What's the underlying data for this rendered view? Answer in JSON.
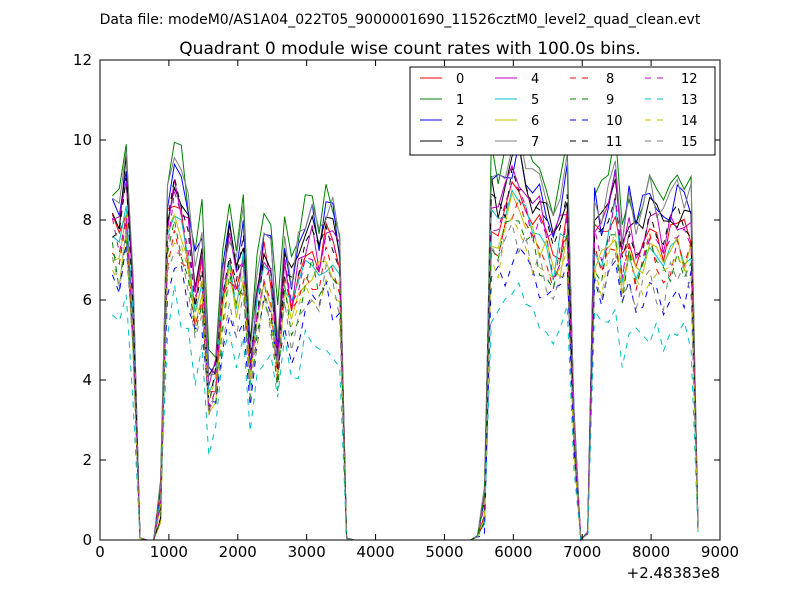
{
  "chart_data": {
    "type": "line",
    "suptitle": "Data file: modeM0/AS1A04_022T05_9000001690_11526cztM0_level2_quad_clean.evt",
    "title": "Quadrant 0 module wise count rates with 100.0s bins.",
    "xlabel": "",
    "ylabel": "",
    "x_offset_label": "+2.48383e8",
    "xlim": [
      0,
      9000
    ],
    "ylim": [
      0,
      12
    ],
    "xticks": [
      0,
      1000,
      2000,
      3000,
      4000,
      5000,
      6000,
      7000,
      8000,
      9000
    ],
    "yticks": [
      0,
      2,
      4,
      6,
      8,
      10,
      12
    ],
    "legend_position": "top-right",
    "legend_columns": 4,
    "base_x": [
      180,
      280,
      380,
      480,
      580,
      680,
      780,
      880,
      980,
      1080,
      1180,
      1280,
      1380,
      1480,
      1580,
      1680,
      1780,
      1880,
      1980,
      2080,
      2180,
      2280,
      2380,
      2480,
      2580,
      2680,
      2780,
      2880,
      2980,
      3080,
      3180,
      3280,
      3380,
      3480,
      3580,
      3680,
      3780,
      3880,
      3980,
      4080,
      4180,
      4280,
      4380,
      4480,
      4580,
      4680,
      4780,
      4880,
      4980,
      5080,
      5180,
      5280,
      5380,
      5480,
      5580,
      5680,
      5780,
      5880,
      5980,
      6080,
      6180,
      6280,
      6380,
      6480,
      6580,
      6680,
      6780,
      6880,
      6980,
      7080,
      7180,
      7280,
      7380,
      7480,
      7580,
      7680,
      7780,
      7880,
      7980,
      8080,
      8180,
      8280,
      8380,
      8480,
      8580,
      8680
    ],
    "base_y": [
      8.3,
      8.0,
      9.2,
      6.0,
      0.05,
      0.0,
      0.0,
      1.0,
      8.4,
      9.2,
      8.6,
      7.8,
      6.6,
      7.4,
      4.0,
      4.4,
      6.6,
      7.4,
      6.8,
      7.6,
      4.7,
      6.3,
      7.6,
      7.0,
      5.0,
      7.4,
      6.4,
      7.0,
      7.6,
      7.8,
      7.4,
      8.0,
      7.8,
      7.2,
      0.05,
      0.0,
      0.0,
      0.0,
      0.0,
      0.0,
      0.0,
      0.0,
      0.0,
      0.0,
      0.0,
      0.0,
      0.0,
      0.0,
      0.0,
      0.0,
      0.0,
      0.0,
      0.0,
      0.1,
      0.8,
      8.8,
      8.5,
      9.0,
      9.3,
      9.6,
      9.2,
      8.6,
      8.4,
      8.2,
      7.6,
      8.0,
      8.8,
      3.0,
      0.0,
      0.2,
      8.2,
      7.8,
      8.6,
      9.0,
      7.4,
      8.2,
      7.6,
      8.0,
      8.4,
      8.0,
      7.8,
      8.2,
      8.3,
      8.1,
      8.2,
      0.3
    ],
    "series": [
      {
        "name": "0",
        "color": "#ff0000",
        "dash": "solid",
        "scale": 0.93,
        "seed": 1
      },
      {
        "name": "1",
        "color": "#008000",
        "dash": "solid",
        "scale": 1.09,
        "seed": 2
      },
      {
        "name": "2",
        "color": "#0000ff",
        "dash": "solid",
        "scale": 1.02,
        "seed": 3
      },
      {
        "name": "3",
        "color": "#000000",
        "dash": "solid",
        "scale": 1.0,
        "seed": 4
      },
      {
        "name": "4",
        "color": "#bf00bf",
        "dash": "solid",
        "scale": 0.97,
        "seed": 5
      },
      {
        "name": "5",
        "color": "#00bfbf",
        "dash": "solid",
        "scale": 0.9,
        "seed": 6
      },
      {
        "name": "6",
        "color": "#bfbf00",
        "dash": "solid",
        "scale": 0.88,
        "seed": 7
      },
      {
        "name": "7",
        "color": "#808080",
        "dash": "solid",
        "scale": 1.05,
        "seed": 8
      },
      {
        "name": "8",
        "color": "#ff0000",
        "dash": "dashed",
        "scale": 0.86,
        "seed": 9
      },
      {
        "name": "9",
        "color": "#008000",
        "dash": "dashed",
        "scale": 0.84,
        "seed": 10
      },
      {
        "name": "10",
        "color": "#0000ff",
        "dash": "dashed",
        "scale": 0.76,
        "seed": 11
      },
      {
        "name": "11",
        "color": "#000000",
        "dash": "dashed",
        "scale": 0.95,
        "seed": 12
      },
      {
        "name": "12",
        "color": "#bf00bf",
        "dash": "dashed",
        "scale": 0.91,
        "seed": 13
      },
      {
        "name": "13",
        "color": "#00bfbf",
        "dash": "dashed",
        "scale": 0.64,
        "seed": 14
      },
      {
        "name": "14",
        "color": "#bfbf00",
        "dash": "dashed",
        "scale": 0.82,
        "seed": 15
      },
      {
        "name": "15",
        "color": "#808080",
        "dash": "dashed",
        "scale": 0.8,
        "seed": 16
      }
    ]
  }
}
